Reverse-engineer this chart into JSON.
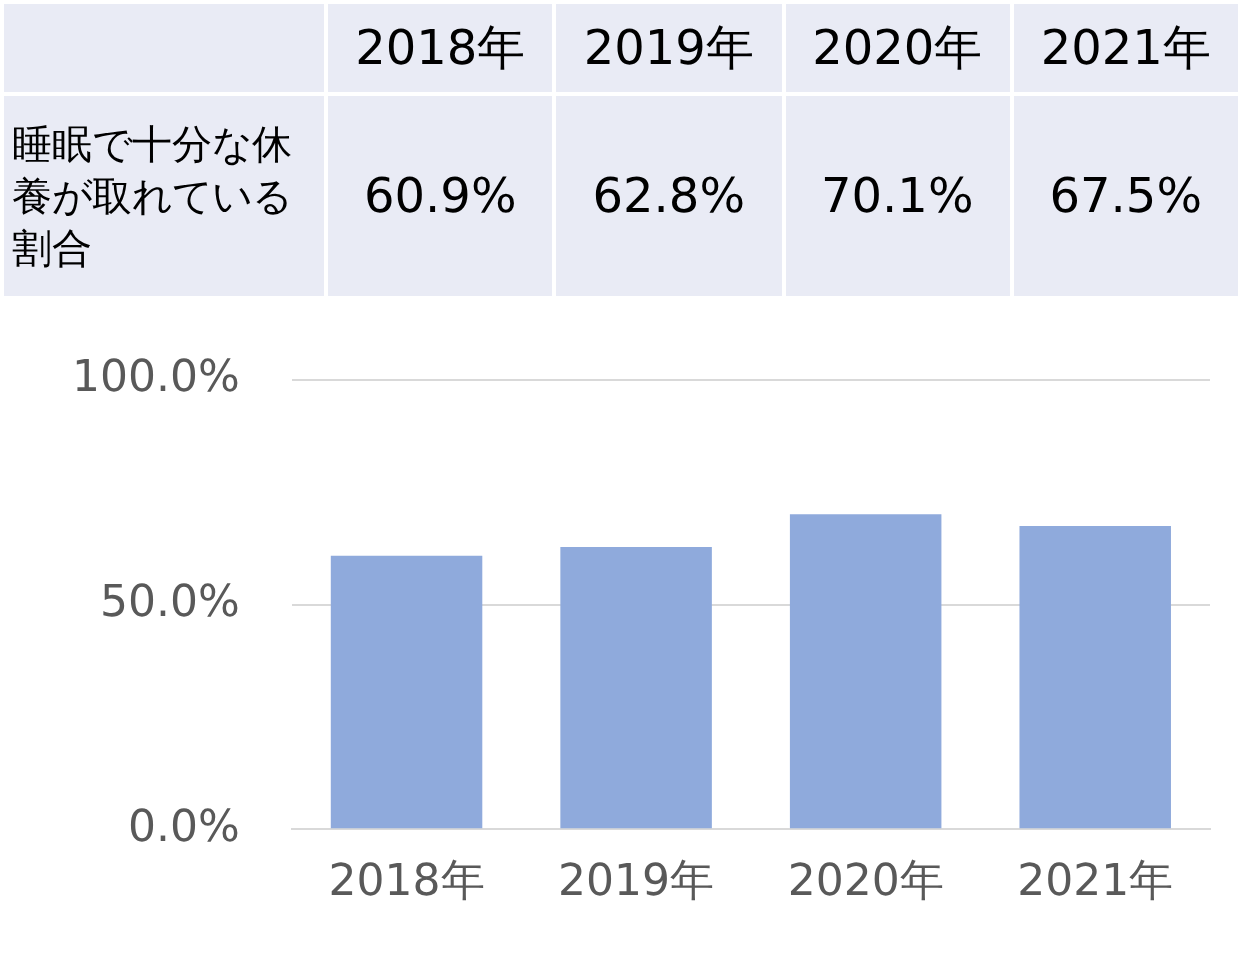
{
  "chart_data": {
    "type": "bar",
    "categories": [
      "2018年",
      "2019年",
      "2020年",
      "2021年"
    ],
    "series": [
      {
        "name": "睡眠で十分な休養が取れている割合",
        "color": "#8faadc",
        "values": [
          60.9,
          62.8,
          70.1,
          67.5
        ],
        "value_labels": [
          "60.9%",
          "62.8%",
          "70.1%",
          "67.5%"
        ]
      }
    ],
    "ylim": [
      0,
      100
    ],
    "yticks": [
      {
        "value": 0,
        "label": "0.0%"
      },
      {
        "value": 50,
        "label": "50.0%"
      },
      {
        "value": 100,
        "label": "100.0%"
      }
    ],
    "grid": "y",
    "legend": false
  }
}
